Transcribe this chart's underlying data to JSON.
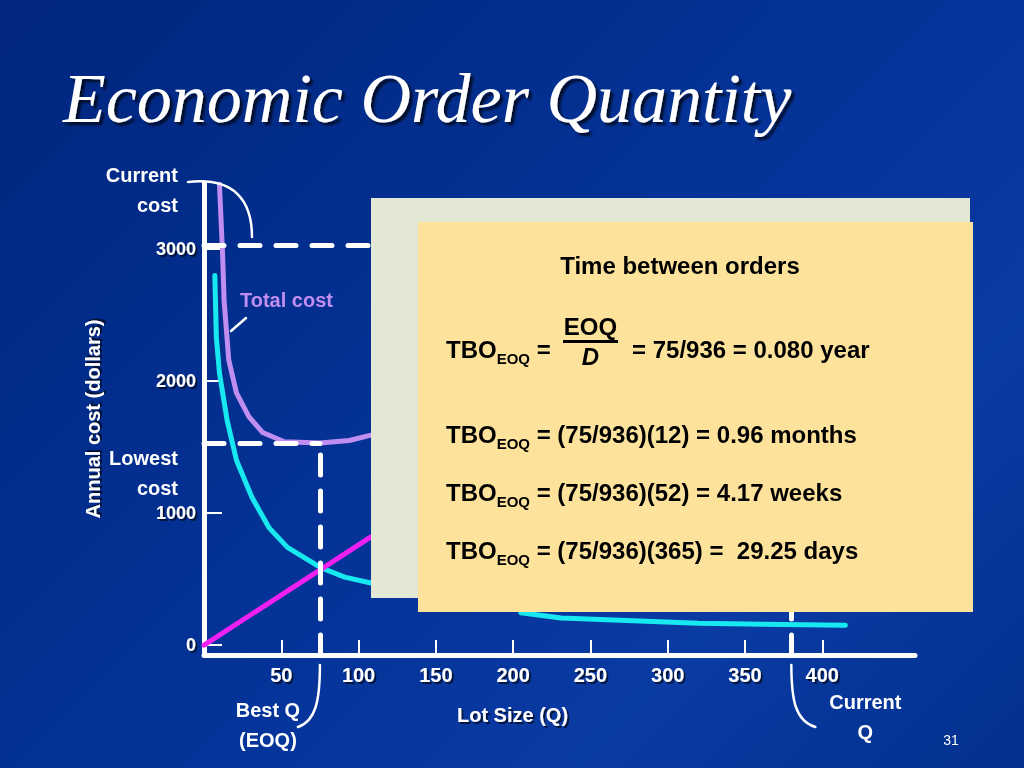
{
  "chart_data": [
    {
      "type": "line",
      "title": "Economic Order Quantity",
      "xlabel": "Lot Size (Q)",
      "ylabel": "Annual cost (dollars)",
      "xlim": [
        0,
        460
      ],
      "ylim": [
        -75,
        3500
      ],
      "xticks": [
        50,
        100,
        150,
        200,
        250,
        300,
        350,
        400
      ],
      "yticks": [
        0,
        1000,
        2000,
        3000
      ],
      "series": [
        {
          "name": "Total cost",
          "color": "#c08ef0",
          "x": [
            10,
            12,
            13,
            16,
            21,
            29,
            38,
            52,
            75,
            94,
            108
          ],
          "values": [
            3490,
            2970,
            2610,
            2160,
            1910,
            1730,
            1610,
            1540,
            1530,
            1550,
            1590
          ]
        },
        {
          "color": "#18e8f0",
          "x": [
            7,
            8,
            10,
            15,
            21,
            31,
            42,
            54,
            75,
            91,
            108,
            150,
            205,
            231,
            320,
            415
          ],
          "values": [
            2800,
            2330,
            2060,
            1700,
            1400,
            1120,
            890,
            740,
            590,
            515,
            470,
            null,
            245,
            205,
            165,
            150
          ]
        },
        {
          "color": "#f020f0",
          "x": [
            0,
            108
          ],
          "values": [
            0,
            820
          ]
        }
      ],
      "ref_lines": [
        {
          "axis": "y",
          "value": 3030,
          "label": "Current cost",
          "color": "#ffffff",
          "line_style": "dashed"
        },
        {
          "axis": "y",
          "value": 1530,
          "label": "Lowest cost",
          "color": "#ffffff",
          "line_style": "dashed"
        },
        {
          "axis": "x",
          "value": 380,
          "label": "Current Q",
          "color": "#ffffff",
          "line_style": "dashed"
        },
        {
          "axis": "x",
          "value": 75,
          "label": "Best Q (EOQ)",
          "color": "#ffffff",
          "line_style": "dashed"
        }
      ],
      "annotations": [
        "31"
      ],
      "grid": false,
      "legend": false,
      "marker": "none",
      "line_style": "solid"
    },
    {
      "type": "other",
      "title": "Time between orders",
      "annotations": [
        "TBO$_{EOQ}$ =",
        "EOQ",
        "D",
        "= 75/936 = 0.080 year",
        "TBO$_{EOQ}$ = (75/936)(12) = 0.96 months",
        "TBO$_{EOQ}$ = (75/936)(52) = 4.17 weeks",
        "TBO$_{EOQ}$ = (75/936)(365) =  29.25 days"
      ]
    }
  ]
}
